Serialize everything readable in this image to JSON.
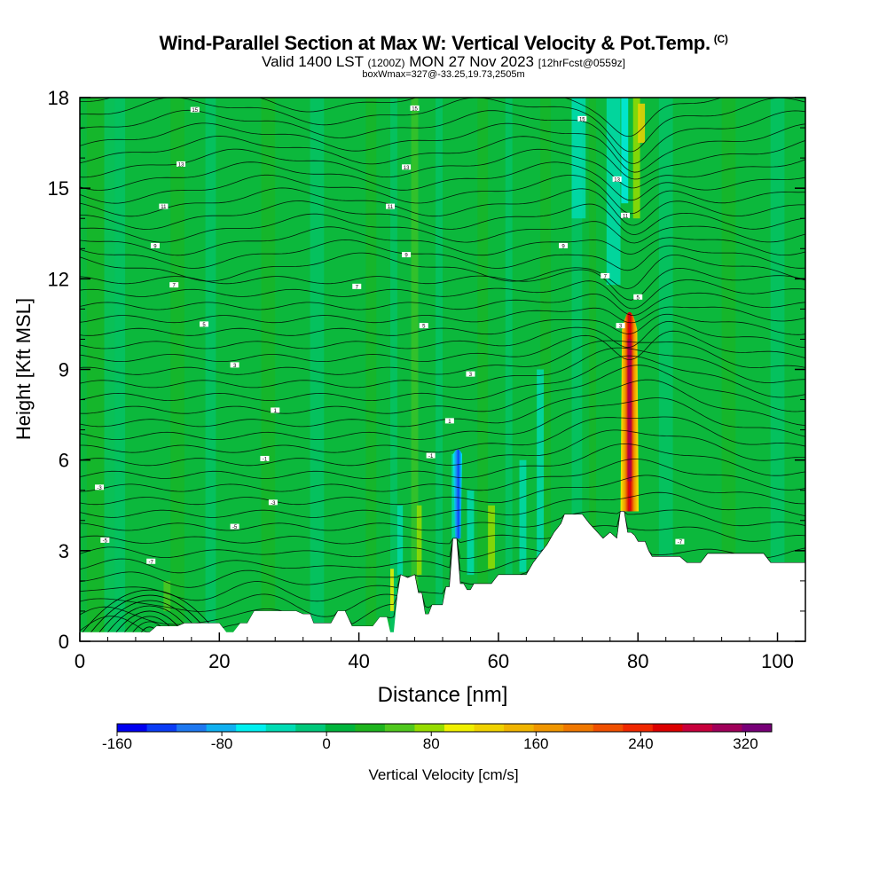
{
  "chart_data": {
    "type": "heatmap",
    "title": "Wind-Parallel Section at Max W: Vertical Velocity & Pot.Temp.",
    "title_mark": "(C)",
    "subtitle_main": "Valid 1400 LST",
    "subtitle_utc": "(1200Z)",
    "subtitle_date": "MON 27 Nov 2023",
    "subtitle_fcst": "[12hrFcst@0559z]",
    "box_info": "boxWmax=327@-33.25,19.73,2505m",
    "xlabel": "Distance [nm]",
    "ylabel": "Height [Kft MSL]",
    "xlim": [
      0,
      104
    ],
    "ylim": [
      0,
      18
    ],
    "x_ticks": [
      "0",
      "20",
      "40",
      "60",
      "80",
      "100"
    ],
    "y_ticks": [
      "0",
      "3",
      "6",
      "9",
      "12",
      "15",
      "18"
    ],
    "colorbar": {
      "label": "Vertical Velocity [cm/s]",
      "range": [
        -160,
        340
      ],
      "tick_labels": [
        "-160",
        "-80",
        "0",
        "80",
        "160",
        "240",
        "320"
      ],
      "colors": [
        "#0000f0",
        "#0a3cf5",
        "#1e78f0",
        "#10b0f0",
        "#00f0f0",
        "#00dcb4",
        "#00c87a",
        "#00b43c",
        "#1eb41e",
        "#50c81e",
        "#96dc00",
        "#f0f000",
        "#f0d200",
        "#f0b400",
        "#f09600",
        "#f07800",
        "#f05000",
        "#f02800",
        "#dc0000",
        "#c8003c",
        "#a0005a",
        "#780078"
      ]
    },
    "background_color": "#0cb83c",
    "terrain": [
      [
        0,
        0.3
      ],
      [
        10,
        0.3
      ],
      [
        11,
        0.5
      ],
      [
        14,
        0.5
      ],
      [
        15,
        0.6
      ],
      [
        20,
        0.6
      ],
      [
        21,
        0.3
      ],
      [
        22,
        0.3
      ],
      [
        23,
        0.6
      ],
      [
        24,
        0.6
      ],
      [
        25,
        1.0
      ],
      [
        31,
        1.0
      ],
      [
        32,
        0.9
      ],
      [
        33,
        0.9
      ],
      [
        33.5,
        0.6
      ],
      [
        36,
        0.6
      ],
      [
        37,
        1.0
      ],
      [
        38,
        1.0
      ],
      [
        39,
        0.5
      ],
      [
        42,
        0.5
      ],
      [
        43,
        0.8
      ],
      [
        44,
        0.8
      ],
      [
        44.5,
        0.3
      ],
      [
        45,
        0.3
      ],
      [
        45.5,
        1.5
      ],
      [
        46,
        2.2
      ],
      [
        47,
        2.1
      ],
      [
        48,
        2.2
      ],
      [
        48.5,
        1.6
      ],
      [
        49,
        1.6
      ],
      [
        49.5,
        0.9
      ],
      [
        50,
        0.9
      ],
      [
        50.5,
        1.2
      ],
      [
        52,
        1.2
      ],
      [
        52.5,
        1.8
      ],
      [
        53,
        1.8
      ],
      [
        53.5,
        3.4
      ],
      [
        54,
        3.4
      ],
      [
        54.5,
        1.9
      ],
      [
        55,
        1.9
      ],
      [
        55.5,
        1.7
      ],
      [
        56,
        1.7
      ],
      [
        56.5,
        1.9
      ],
      [
        59,
        1.9
      ],
      [
        60,
        2.2
      ],
      [
        64,
        2.2
      ],
      [
        65,
        2.6
      ],
      [
        66,
        2.9
      ],
      [
        67,
        3.2
      ],
      [
        68,
        3.6
      ],
      [
        69,
        3.9
      ],
      [
        69.5,
        4.2
      ],
      [
        72,
        4.2
      ],
      [
        73,
        3.9
      ],
      [
        75,
        3.4
      ],
      [
        76,
        3.6
      ],
      [
        77,
        3.4
      ],
      [
        77.5,
        4.3
      ],
      [
        78,
        4.3
      ],
      [
        78.5,
        3.6
      ],
      [
        79,
        3.6
      ],
      [
        79.5,
        3.5
      ],
      [
        80,
        3.3
      ],
      [
        81,
        3.3
      ],
      [
        81.5,
        3.0
      ],
      [
        82,
        2.8
      ],
      [
        86,
        2.8
      ],
      [
        87,
        2.6
      ],
      [
        89,
        2.6
      ],
      [
        90,
        2.9
      ],
      [
        98,
        2.9
      ],
      [
        99,
        2.6
      ],
      [
        104,
        2.6
      ]
    ],
    "pot_temp_labels": [
      {
        "x": 16.5,
        "y": 17.6,
        "label": "15"
      },
      {
        "x": 48,
        "y": 17.65,
        "label": "15"
      },
      {
        "x": 72,
        "y": 17.3,
        "label": "15"
      },
      {
        "x": 14.5,
        "y": 15.8,
        "label": "13"
      },
      {
        "x": 46.8,
        "y": 15.7,
        "label": "13"
      },
      {
        "x": 77,
        "y": 15.3,
        "label": "13"
      },
      {
        "x": 12,
        "y": 14.4,
        "label": "11"
      },
      {
        "x": 44.5,
        "y": 14.4,
        "label": "11"
      },
      {
        "x": 78.2,
        "y": 14.1,
        "label": "11"
      },
      {
        "x": 10.8,
        "y": 13.1,
        "label": "9"
      },
      {
        "x": 46.8,
        "y": 12.8,
        "label": "9"
      },
      {
        "x": 69.3,
        "y": 13.1,
        "label": "9"
      },
      {
        "x": 13.5,
        "y": 11.8,
        "label": "7"
      },
      {
        "x": 39.7,
        "y": 11.75,
        "label": "7"
      },
      {
        "x": 75.3,
        "y": 12.1,
        "label": "7"
      },
      {
        "x": 17.8,
        "y": 10.5,
        "label": "5"
      },
      {
        "x": 49.3,
        "y": 10.45,
        "label": "5"
      },
      {
        "x": 80,
        "y": 11.4,
        "label": "5"
      },
      {
        "x": 22.2,
        "y": 9.15,
        "label": "3"
      },
      {
        "x": 56,
        "y": 8.85,
        "label": "3"
      },
      {
        "x": 77.5,
        "y": 10.45,
        "label": "3"
      },
      {
        "x": 28,
        "y": 7.65,
        "label": "1"
      },
      {
        "x": 53,
        "y": 7.3,
        "label": "1"
      },
      {
        "x": 26.5,
        "y": 6.05,
        "label": "-1"
      },
      {
        "x": 50.3,
        "y": 6.15,
        "label": "-1"
      },
      {
        "x": 2.8,
        "y": 5.1,
        "label": "-3"
      },
      {
        "x": 27.7,
        "y": 4.6,
        "label": "-3"
      },
      {
        "x": 22.2,
        "y": 3.8,
        "label": "-5"
      },
      {
        "x": 3.6,
        "y": 3.35,
        "label": "-5"
      },
      {
        "x": 10.2,
        "y": 2.65,
        "label": "-7"
      },
      {
        "x": 86,
        "y": 3.3,
        "label": "-7"
      }
    ],
    "updraft_max": {
      "value": 327,
      "x": 78.8,
      "y_base": 4.3,
      "y_top": 11.3
    },
    "downdraft_min": {
      "x": 54.2,
      "y_top": 6.2,
      "y_bottom": 3.4
    }
  }
}
